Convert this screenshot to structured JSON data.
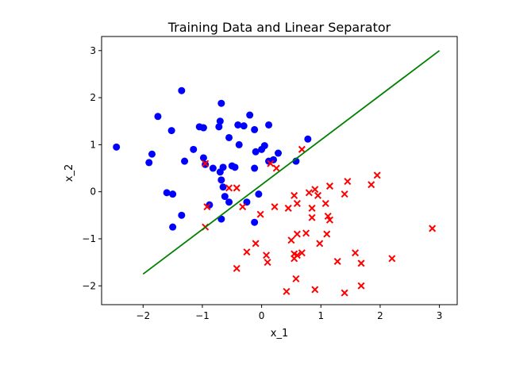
{
  "chart_data": {
    "type": "scatter",
    "title": "Training Data and Linear Separator",
    "xlabel": "x_1",
    "ylabel": "x_2",
    "xlim": [
      -2.7,
      3.3
    ],
    "ylim": [
      -2.4,
      3.3
    ],
    "x_ticks": [
      -2,
      -1,
      0,
      1,
      2,
      3
    ],
    "y_ticks": [
      -2,
      -1,
      0,
      1,
      2,
      3
    ],
    "x_tick_labels": [
      "−2",
      "−1",
      "0",
      "1",
      "2",
      "3"
    ],
    "y_tick_labels": [
      "−2",
      "−1",
      "0",
      "1",
      "2",
      "3"
    ],
    "grid": false,
    "legend": false,
    "series": [
      {
        "marker": "circle",
        "color": "#0000ff",
        "points": [
          [
            -2.45,
            0.95
          ],
          [
            -1.35,
            2.15
          ],
          [
            -1.75,
            1.6
          ],
          [
            -1.52,
            1.3
          ],
          [
            -1.85,
            0.8
          ],
          [
            -1.9,
            0.62
          ],
          [
            -1.3,
            0.65
          ],
          [
            -1.15,
            0.9
          ],
          [
            -1.05,
            1.38
          ],
          [
            -0.98,
            1.36
          ],
          [
            -0.98,
            0.72
          ],
          [
            -0.95,
            0.58
          ],
          [
            -0.68,
            1.88
          ],
          [
            -0.7,
            1.5
          ],
          [
            -0.72,
            1.38
          ],
          [
            -0.55,
            1.15
          ],
          [
            -0.4,
            1.42
          ],
          [
            -0.3,
            1.4
          ],
          [
            -0.2,
            1.63
          ],
          [
            -0.12,
            1.32
          ],
          [
            0.12,
            1.42
          ],
          [
            0.78,
            1.12
          ],
          [
            -0.38,
            1.0
          ],
          [
            -0.1,
            0.85
          ],
          [
            0.0,
            0.9
          ],
          [
            0.05,
            0.98
          ],
          [
            0.28,
            0.82
          ],
          [
            0.12,
            0.65
          ],
          [
            0.2,
            0.68
          ],
          [
            0.58,
            0.65
          ],
          [
            -0.82,
            0.5
          ],
          [
            -0.7,
            0.42
          ],
          [
            -0.65,
            0.52
          ],
          [
            -0.5,
            0.55
          ],
          [
            -0.45,
            0.52
          ],
          [
            -0.12,
            0.5
          ],
          [
            -0.68,
            0.25
          ],
          [
            -0.65,
            0.1
          ],
          [
            -0.62,
            -0.1
          ],
          [
            -0.55,
            -0.22
          ],
          [
            -0.25,
            -0.22
          ],
          [
            -0.05,
            -0.05
          ],
          [
            -1.6,
            -0.02
          ],
          [
            -1.5,
            -0.05
          ],
          [
            -0.88,
            -0.28
          ],
          [
            -1.35,
            -0.5
          ],
          [
            -1.5,
            -0.75
          ],
          [
            -0.68,
            -0.58
          ],
          [
            -0.12,
            -0.65
          ]
        ]
      },
      {
        "marker": "x",
        "color": "#ff0000",
        "points": [
          [
            0.68,
            0.9
          ],
          [
            -0.95,
            0.6
          ],
          [
            0.15,
            0.6
          ],
          [
            0.25,
            0.5
          ],
          [
            -0.55,
            0.08
          ],
          [
            -0.42,
            0.08
          ],
          [
            0.9,
            0.05
          ],
          [
            1.15,
            0.12
          ],
          [
            1.45,
            0.22
          ],
          [
            1.95,
            0.35
          ],
          [
            1.85,
            0.15
          ],
          [
            0.8,
            -0.02
          ],
          [
            0.95,
            -0.08
          ],
          [
            1.4,
            -0.05
          ],
          [
            0.55,
            -0.08
          ],
          [
            0.6,
            -0.25
          ],
          [
            1.08,
            -0.25
          ],
          [
            0.45,
            -0.35
          ],
          [
            0.85,
            -0.35
          ],
          [
            0.22,
            -0.32
          ],
          [
            -0.92,
            -0.32
          ],
          [
            -0.32,
            -0.32
          ],
          [
            -0.02,
            -0.48
          ],
          [
            1.12,
            -0.52
          ],
          [
            1.15,
            -0.6
          ],
          [
            0.85,
            -0.55
          ],
          [
            -0.95,
            -0.75
          ],
          [
            0.6,
            -0.9
          ],
          [
            0.75,
            -0.88
          ],
          [
            1.1,
            -0.9
          ],
          [
            -0.1,
            -1.1
          ],
          [
            0.98,
            -1.1
          ],
          [
            0.5,
            -1.03
          ],
          [
            2.88,
            -0.78
          ],
          [
            -0.25,
            -1.28
          ],
          [
            0.08,
            -1.35
          ],
          [
            0.55,
            -1.32
          ],
          [
            0.6,
            -1.35
          ],
          [
            0.68,
            -1.3
          ],
          [
            0.55,
            -1.42
          ],
          [
            1.28,
            -1.48
          ],
          [
            1.58,
            -1.3
          ],
          [
            1.68,
            -1.52
          ],
          [
            2.2,
            -1.42
          ],
          [
            0.1,
            -1.5
          ],
          [
            -0.42,
            -1.63
          ],
          [
            0.58,
            -1.85
          ],
          [
            1.68,
            -2.0
          ],
          [
            0.9,
            -2.08
          ],
          [
            0.42,
            -2.12
          ],
          [
            1.4,
            -2.15
          ]
        ]
      },
      {
        "marker": "line",
        "color": "#008000",
        "points": [
          [
            -2.0,
            -1.75
          ],
          [
            3.0,
            3.0
          ]
        ]
      }
    ]
  }
}
